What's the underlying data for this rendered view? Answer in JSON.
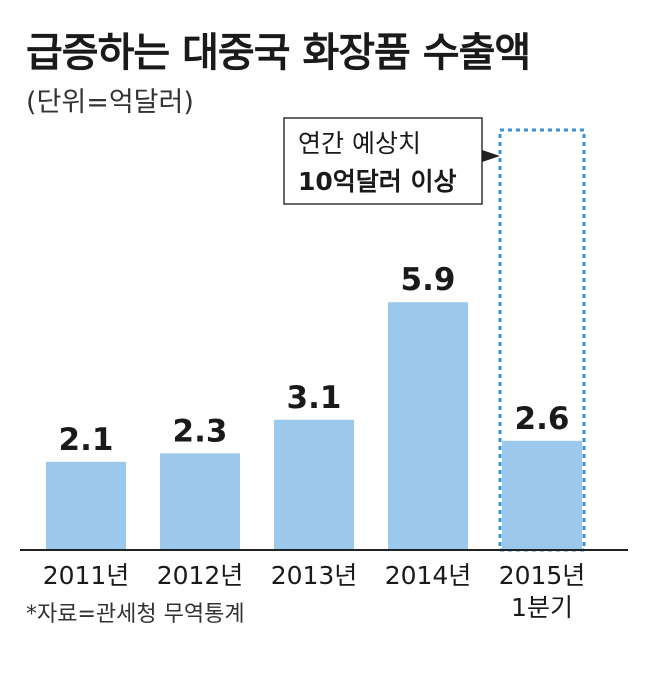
{
  "title": "급증하는 대중국 화장품 수출액",
  "unit_label": "(단위=억달러)",
  "source": "*자료=관세청 무역통계",
  "callout": {
    "line1": "연간 예상치",
    "line2": "10억달러 이상"
  },
  "colors": {
    "bar": "#9cc8eb",
    "projection_border": "#3a92d9",
    "text": "#1a1a1a",
    "axis": "#222222"
  },
  "chart_data": {
    "type": "bar",
    "title": "급증하는 대중국 화장품 수출액",
    "xlabel": "",
    "ylabel": "",
    "categories": [
      "2011년",
      "2012년",
      "2013년",
      "2014년",
      "2015년 1분기"
    ],
    "category_lines": [
      [
        "2011년"
      ],
      [
        "2012년"
      ],
      [
        "2013년"
      ],
      [
        "2014년"
      ],
      [
        "2015년",
        "1분기"
      ]
    ],
    "values": [
      2.1,
      2.3,
      3.1,
      5.9,
      2.6
    ],
    "value_labels": [
      "2.1",
      "2.3",
      "3.1",
      "5.9",
      "2.6"
    ],
    "projection": {
      "category_index": 4,
      "value": 10,
      "label": "연간 예상치 10억달러 이상"
    },
    "ylim": [
      0,
      10
    ],
    "grid": false,
    "legend": "none"
  }
}
